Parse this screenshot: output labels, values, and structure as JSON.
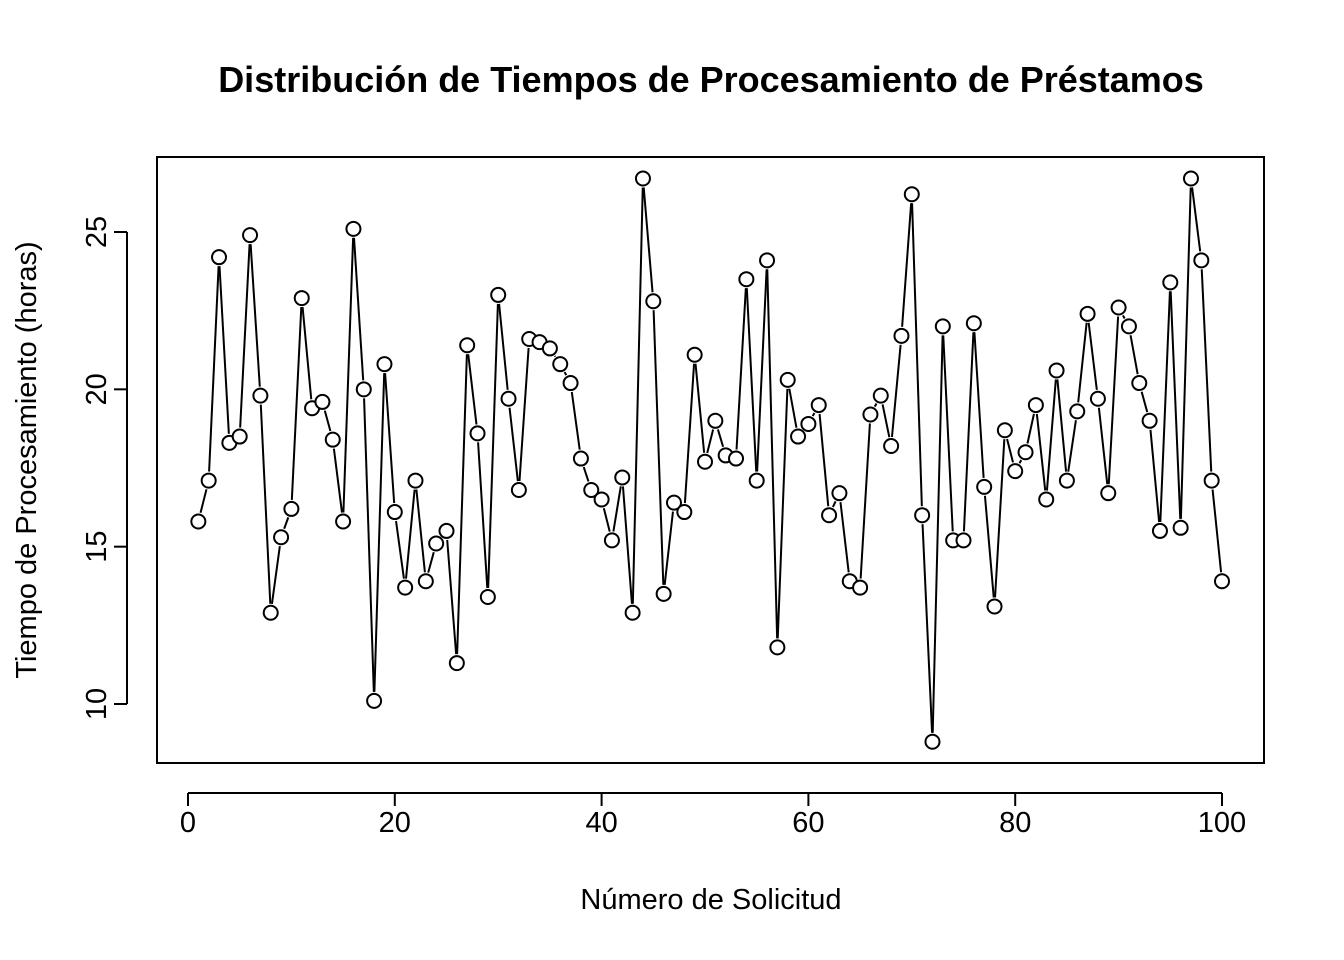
{
  "chart_data": {
    "type": "line",
    "title": "Distribución de Tiempos de Procesamiento de Préstamos",
    "xlabel": "Número de Solicitud",
    "ylabel": "Tiempo de Procesamiento (horas)",
    "xlim": [
      0,
      100
    ],
    "ylim": [
      8.5,
      27.3
    ],
    "x_ticks": [
      0,
      20,
      40,
      60,
      80,
      100
    ],
    "y_ticks": [
      10,
      15,
      20,
      25
    ],
    "x_tick_labels": [
      "0",
      "20",
      "40",
      "60",
      "80",
      "100"
    ],
    "y_tick_labels": [
      "10",
      "15",
      "20",
      "25"
    ],
    "grid": false,
    "legend": "none",
    "marker": "open-circle",
    "line_style": "both-gapped",
    "color": "#000000",
    "series": [
      {
        "x": [
          1,
          2,
          3,
          4,
          5,
          6,
          7,
          8,
          9,
          10,
          11,
          12,
          13,
          14,
          15,
          16,
          17,
          18,
          19,
          20,
          21,
          22,
          23,
          24,
          25,
          26,
          27,
          28,
          29,
          30,
          31,
          32,
          33,
          34,
          35,
          36,
          37,
          38,
          39,
          40,
          41,
          42,
          43,
          44,
          45,
          46,
          47,
          48,
          49,
          50,
          51,
          52,
          53,
          54,
          55,
          56,
          57,
          58,
          59,
          60,
          61,
          62,
          63,
          64,
          65,
          66,
          67,
          68,
          69,
          70,
          71,
          72,
          73,
          74,
          75,
          76,
          77,
          78,
          79,
          80,
          81,
          82,
          83,
          84,
          85,
          86,
          87,
          88,
          89,
          90,
          91,
          92,
          93,
          94,
          95,
          96,
          97,
          98,
          99,
          100
        ],
        "values": [
          15.8,
          17.1,
          24.2,
          18.3,
          18.5,
          24.9,
          19.8,
          12.9,
          15.3,
          16.2,
          22.9,
          19.4,
          19.6,
          18.4,
          15.8,
          25.1,
          20.0,
          10.1,
          20.8,
          16.1,
          13.7,
          17.1,
          13.9,
          15.1,
          15.5,
          11.3,
          21.4,
          18.6,
          13.4,
          23.0,
          19.7,
          16.8,
          21.6,
          21.5,
          21.3,
          20.8,
          20.2,
          17.8,
          16.8,
          16.5,
          15.2,
          17.2,
          12.9,
          26.7,
          22.8,
          13.5,
          16.4,
          16.1,
          21.1,
          17.7,
          19.0,
          17.9,
          17.8,
          23.5,
          17.1,
          24.1,
          11.8,
          20.3,
          18.5,
          18.9,
          19.5,
          16.0,
          16.7,
          13.9,
          13.7,
          19.2,
          19.8,
          18.2,
          21.7,
          26.2,
          16.0,
          8.8,
          22.0,
          15.2,
          15.2,
          22.1,
          16.9,
          13.1,
          18.7,
          17.4,
          18.0,
          19.5,
          16.5,
          20.6,
          17.1,
          19.3,
          22.4,
          19.7,
          16.7,
          22.6,
          22.0,
          20.2,
          19.0,
          15.5,
          23.4,
          15.6,
          26.7,
          24.1,
          17.1,
          13.9
        ]
      }
    ]
  }
}
